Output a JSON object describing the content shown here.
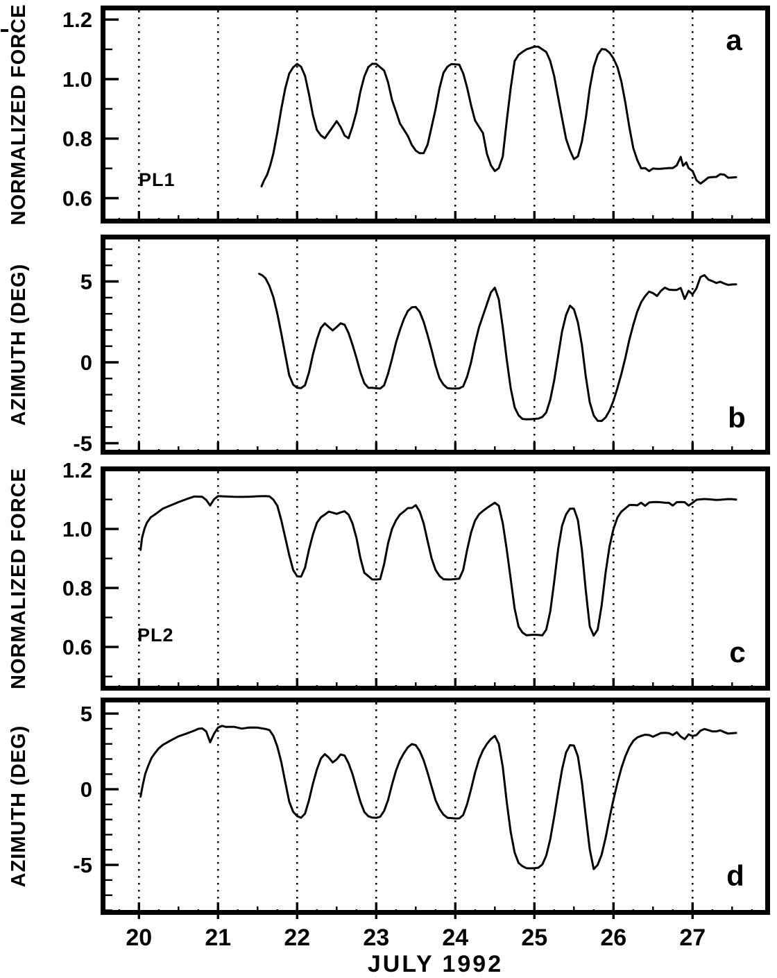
{
  "figure": {
    "xlabel": "JULY 1992",
    "x_ticks": [
      20,
      21,
      22,
      23,
      24,
      25,
      26,
      27
    ],
    "xlim": [
      19.515,
      27.98
    ],
    "background": "#ffffff",
    "ink": "#000000",
    "grid": "vertical-dotted-at-each-day"
  },
  "chart_data": [
    {
      "type": "line",
      "panel_letter": "a",
      "series": "PL1",
      "series_label": "PL1",
      "ylabel": "NORMALIZED FORCE",
      "ylim": [
        0.515,
        1.247
      ],
      "yticks_major": [
        {
          "v": 1.2,
          "label": "1.2"
        },
        {
          "v": 1.0,
          "label": "1.0"
        },
        {
          "v": 0.8,
          "label": "0.8"
        },
        {
          "v": 0.6,
          "label": "0.6"
        }
      ],
      "yticks_minor": [
        1.1,
        0.9,
        0.7
      ],
      "x": [
        21.55,
        21.58,
        21.62,
        21.66,
        21.7,
        21.75,
        21.8,
        21.85,
        21.9,
        21.95,
        22.0,
        22.05,
        22.1,
        22.15,
        22.2,
        22.25,
        22.3,
        22.35,
        22.4,
        22.45,
        22.5,
        22.55,
        22.6,
        22.65,
        22.7,
        22.75,
        22.8,
        22.85,
        22.9,
        22.95,
        23.0,
        23.05,
        23.1,
        23.15,
        23.2,
        23.25,
        23.3,
        23.35,
        23.4,
        23.45,
        23.5,
        23.55,
        23.6,
        23.65,
        23.7,
        23.75,
        23.8,
        23.85,
        23.9,
        23.95,
        24.0,
        24.05,
        24.1,
        24.15,
        24.2,
        24.25,
        24.3,
        24.35,
        24.4,
        24.45,
        24.5,
        24.55,
        24.6,
        24.65,
        24.7,
        24.75,
        24.8,
        24.85,
        24.9,
        25.0,
        25.05,
        25.1,
        25.15,
        25.2,
        25.25,
        25.3,
        25.35,
        25.4,
        25.45,
        25.5,
        25.55,
        25.6,
        25.65,
        25.7,
        25.75,
        25.8,
        25.85,
        25.9,
        25.95,
        26.0,
        26.05,
        26.1,
        26.15,
        26.2,
        26.25,
        26.3,
        26.35,
        26.4,
        26.45,
        26.5,
        26.55,
        26.6,
        26.65,
        26.7,
        26.75,
        26.8,
        26.85,
        26.88,
        26.92,
        26.95,
        27.0,
        27.05,
        27.1,
        27.15,
        27.2,
        27.25,
        27.3,
        27.35,
        27.4,
        27.45,
        27.5,
        27.55
      ],
      "y": [
        0.64,
        0.66,
        0.68,
        0.71,
        0.75,
        0.82,
        0.9,
        0.97,
        1.02,
        1.04,
        1.05,
        1.04,
        1.01,
        0.95,
        0.88,
        0.83,
        0.81,
        0.8,
        0.82,
        0.84,
        0.86,
        0.84,
        0.81,
        0.8,
        0.84,
        0.89,
        0.96,
        1.01,
        1.04,
        1.05,
        1.05,
        1.04,
        1.03,
        0.99,
        0.93,
        0.89,
        0.85,
        0.83,
        0.81,
        0.78,
        0.76,
        0.75,
        0.75,
        0.78,
        0.84,
        0.9,
        0.97,
        1.02,
        1.04,
        1.05,
        1.05,
        1.05,
        1.02,
        0.97,
        0.91,
        0.86,
        0.84,
        0.82,
        0.75,
        0.71,
        0.69,
        0.7,
        0.74,
        0.86,
        0.97,
        1.06,
        1.08,
        1.09,
        1.1,
        1.11,
        1.11,
        1.1,
        1.09,
        1.06,
        1.01,
        0.94,
        0.87,
        0.8,
        0.76,
        0.73,
        0.74,
        0.79,
        0.87,
        0.97,
        1.04,
        1.08,
        1.1,
        1.1,
        1.09,
        1.07,
        1.04,
        0.99,
        0.92,
        0.84,
        0.77,
        0.73,
        0.7,
        0.7,
        0.69,
        0.7,
        0.7,
        0.7,
        0.7,
        0.7,
        0.7,
        0.71,
        0.74,
        0.71,
        0.72,
        0.7,
        0.69,
        0.66,
        0.65,
        0.66,
        0.67,
        0.67,
        0.67,
        0.68,
        0.68,
        0.67,
        0.67,
        0.67
      ]
    },
    {
      "type": "line",
      "panel_letter": "b",
      "series": "PL1",
      "ylabel": "AZIMUTH (DEG)",
      "ylim": [
        -5.71,
        7.9
      ],
      "yticks_major": [
        {
          "v": 5,
          "label": "5"
        },
        {
          "v": 0,
          "label": "0"
        },
        {
          "v": -5,
          "label": "-5"
        }
      ],
      "yticks_minor": [
        7,
        6,
        4,
        3,
        2,
        1,
        -1,
        -2,
        -3,
        -4
      ],
      "x": [
        21.52,
        21.56,
        21.6,
        21.65,
        21.7,
        21.75,
        21.8,
        21.85,
        21.9,
        21.95,
        22.0,
        22.05,
        22.1,
        22.15,
        22.2,
        22.25,
        22.3,
        22.35,
        22.4,
        22.45,
        22.5,
        22.55,
        22.6,
        22.65,
        22.7,
        22.75,
        22.8,
        22.85,
        22.9,
        22.95,
        23.0,
        23.05,
        23.1,
        23.15,
        23.2,
        23.25,
        23.3,
        23.35,
        23.4,
        23.45,
        23.5,
        23.55,
        23.6,
        23.65,
        23.7,
        23.75,
        23.8,
        23.85,
        23.9,
        23.95,
        24.0,
        24.05,
        24.1,
        24.15,
        24.2,
        24.25,
        24.3,
        24.35,
        24.4,
        24.45,
        24.5,
        24.55,
        24.6,
        24.65,
        24.7,
        24.75,
        24.8,
        24.85,
        24.9,
        24.95,
        25.0,
        25.05,
        25.1,
        25.15,
        25.2,
        25.25,
        25.3,
        25.35,
        25.4,
        25.45,
        25.5,
        25.55,
        25.6,
        25.65,
        25.7,
        25.75,
        25.8,
        25.85,
        25.9,
        25.95,
        26.0,
        26.05,
        26.1,
        26.15,
        26.2,
        26.25,
        26.3,
        26.35,
        26.4,
        26.45,
        26.5,
        26.55,
        26.6,
        26.65,
        26.7,
        26.75,
        26.8,
        26.85,
        26.9,
        26.95,
        27.0,
        27.05,
        27.1,
        27.15,
        27.2,
        27.25,
        27.3,
        27.35,
        27.4,
        27.45,
        27.5,
        27.55
      ],
      "y": [
        5.5,
        5.4,
        5.2,
        4.7,
        4.0,
        3.0,
        1.8,
        0.5,
        -0.8,
        -1.4,
        -1.6,
        -1.6,
        -1.4,
        -0.6,
        0.5,
        1.4,
        2.1,
        2.4,
        2.2,
        2.0,
        2.2,
        2.4,
        2.3,
        1.8,
        1.1,
        0.3,
        -0.6,
        -1.3,
        -1.6,
        -1.6,
        -1.6,
        -1.6,
        -1.4,
        -0.7,
        0.2,
        1.2,
        2.0,
        2.7,
        3.2,
        3.4,
        3.4,
        3.1,
        2.5,
        1.7,
        0.8,
        -0.2,
        -1.0,
        -1.4,
        -1.6,
        -1.6,
        -1.6,
        -1.6,
        -1.5,
        -0.9,
        0.0,
        1.2,
        2.2,
        2.9,
        3.6,
        4.3,
        4.6,
        3.9,
        2.2,
        0.2,
        -1.6,
        -2.8,
        -3.3,
        -3.5,
        -3.5,
        -3.5,
        -3.5,
        -3.5,
        -3.4,
        -3.1,
        -2.3,
        -1.1,
        0.4,
        1.9,
        2.9,
        3.5,
        3.3,
        2.5,
        1.1,
        -0.9,
        -2.5,
        -3.3,
        -3.6,
        -3.6,
        -3.4,
        -3.0,
        -2.4,
        -1.6,
        -0.7,
        0.3,
        1.4,
        2.3,
        3.1,
        3.7,
        4.1,
        4.4,
        4.3,
        4.1,
        4.4,
        4.6,
        4.5,
        4.5,
        4.5,
        4.6,
        3.9,
        4.4,
        4.2,
        4.6,
        5.3,
        5.4,
        5.1,
        5.0,
        4.9,
        5.0,
        4.9,
        4.8,
        4.8,
        4.8
      ]
    },
    {
      "type": "line",
      "panel_letter": "c",
      "series": "PL2",
      "series_label": "PL2",
      "ylabel": "NORMALIZED FORCE",
      "ylim": [
        0.452,
        1.212
      ],
      "yticks_major": [
        {
          "v": 1.2,
          "label": "1.2"
        },
        {
          "v": 1.0,
          "label": "1.0"
        },
        {
          "v": 0.8,
          "label": "0.8"
        },
        {
          "v": 0.6,
          "label": "0.6"
        }
      ],
      "yticks_minor": [
        1.1,
        0.9,
        0.7,
        0.5
      ],
      "x": [
        20.02,
        20.04,
        20.07,
        20.1,
        20.15,
        20.2,
        20.3,
        20.4,
        20.5,
        20.6,
        20.7,
        20.8,
        20.85,
        20.9,
        20.95,
        21.0,
        21.1,
        21.2,
        21.3,
        21.4,
        21.5,
        21.6,
        21.65,
        21.7,
        21.75,
        21.8,
        21.85,
        21.9,
        21.95,
        22.0,
        22.05,
        22.1,
        22.15,
        22.2,
        22.25,
        22.3,
        22.35,
        22.4,
        22.45,
        22.5,
        22.55,
        22.6,
        22.65,
        22.7,
        22.75,
        22.8,
        22.85,
        22.9,
        22.95,
        23.0,
        23.05,
        23.1,
        23.15,
        23.2,
        23.25,
        23.3,
        23.35,
        23.4,
        23.45,
        23.5,
        23.55,
        23.6,
        23.65,
        23.7,
        23.75,
        23.8,
        23.85,
        23.9,
        23.95,
        24.0,
        24.05,
        24.1,
        24.15,
        24.2,
        24.25,
        24.3,
        24.35,
        24.4,
        24.45,
        24.5,
        24.55,
        24.6,
        24.65,
        24.7,
        24.75,
        24.8,
        24.85,
        24.9,
        24.95,
        25.0,
        25.05,
        25.1,
        25.15,
        25.2,
        25.25,
        25.3,
        25.35,
        25.4,
        25.45,
        25.5,
        25.55,
        25.6,
        25.65,
        25.7,
        25.75,
        25.8,
        25.85,
        25.9,
        25.95,
        26.0,
        26.05,
        26.1,
        26.15,
        26.2,
        26.25,
        26.3,
        26.35,
        26.4,
        26.45,
        26.5,
        26.55,
        26.6,
        26.65,
        26.7,
        26.75,
        26.8,
        26.85,
        26.9,
        26.95,
        27.0,
        27.05,
        27.1,
        27.15,
        27.2,
        27.25,
        27.3,
        27.35,
        27.4,
        27.45,
        27.5,
        27.55
      ],
      "y": [
        0.93,
        0.97,
        1.0,
        1.02,
        1.04,
        1.05,
        1.07,
        1.08,
        1.09,
        1.1,
        1.11,
        1.11,
        1.1,
        1.08,
        1.1,
        1.11,
        1.11,
        1.11,
        1.11,
        1.11,
        1.11,
        1.11,
        1.11,
        1.1,
        1.08,
        1.03,
        0.97,
        0.91,
        0.86,
        0.84,
        0.84,
        0.87,
        0.93,
        0.98,
        1.02,
        1.04,
        1.05,
        1.06,
        1.055,
        1.05,
        1.055,
        1.06,
        1.05,
        1.02,
        0.97,
        0.9,
        0.85,
        0.84,
        0.83,
        0.83,
        0.83,
        0.88,
        0.95,
        1.0,
        1.03,
        1.05,
        1.06,
        1.07,
        1.07,
        1.08,
        1.06,
        1.02,
        0.96,
        0.9,
        0.86,
        0.84,
        0.83,
        0.83,
        0.83,
        0.83,
        0.83,
        0.86,
        0.93,
        0.99,
        1.03,
        1.05,
        1.06,
        1.07,
        1.08,
        1.09,
        1.08,
        1.02,
        0.93,
        0.83,
        0.73,
        0.67,
        0.65,
        0.64,
        0.64,
        0.64,
        0.64,
        0.64,
        0.66,
        0.72,
        0.82,
        0.93,
        1.01,
        1.05,
        1.07,
        1.07,
        1.03,
        0.93,
        0.79,
        0.67,
        0.64,
        0.66,
        0.74,
        0.85,
        0.94,
        1.0,
        1.04,
        1.06,
        1.07,
        1.08,
        1.08,
        1.08,
        1.09,
        1.08,
        1.09,
        1.09,
        1.09,
        1.09,
        1.09,
        1.09,
        1.08,
        1.09,
        1.09,
        1.09,
        1.08,
        1.09,
        1.1,
        1.1,
        1.1,
        1.1,
        1.1,
        1.1,
        1.1,
        1.1,
        1.1,
        1.1,
        1.1
      ]
    },
    {
      "type": "line",
      "panel_letter": "d",
      "series": "PL2",
      "ylabel": "AZIMUTH (DEG)",
      "ylim": [
        -8.3,
        6.06
      ],
      "yticks_major": [
        {
          "v": 5,
          "label": "5"
        },
        {
          "v": 0,
          "label": "0"
        },
        {
          "v": -5,
          "label": "-5"
        }
      ],
      "yticks_minor": [
        4,
        3,
        2,
        1,
        -1,
        -2,
        -3,
        -4,
        -6,
        -7,
        -8
      ],
      "x": [
        20.02,
        20.05,
        20.08,
        20.12,
        20.16,
        20.2,
        20.25,
        20.3,
        20.4,
        20.5,
        20.6,
        20.7,
        20.75,
        20.8,
        20.85,
        20.9,
        20.95,
        21.0,
        21.05,
        21.1,
        21.2,
        21.3,
        21.4,
        21.5,
        21.6,
        21.65,
        21.7,
        21.75,
        21.8,
        21.85,
        21.9,
        21.95,
        22.0,
        22.05,
        22.1,
        22.15,
        22.2,
        22.25,
        22.3,
        22.35,
        22.4,
        22.45,
        22.5,
        22.55,
        22.6,
        22.65,
        22.7,
        22.75,
        22.8,
        22.85,
        22.9,
        22.95,
        23.0,
        23.05,
        23.1,
        23.15,
        23.2,
        23.25,
        23.3,
        23.35,
        23.4,
        23.45,
        23.5,
        23.55,
        23.6,
        23.65,
        23.7,
        23.75,
        23.8,
        23.85,
        23.9,
        23.95,
        24.0,
        24.05,
        24.1,
        24.15,
        24.2,
        24.25,
        24.3,
        24.35,
        24.4,
        24.45,
        24.5,
        24.55,
        24.6,
        24.65,
        24.7,
        24.75,
        24.8,
        24.85,
        24.9,
        24.95,
        25.0,
        25.05,
        25.1,
        25.15,
        25.2,
        25.25,
        25.3,
        25.35,
        25.4,
        25.45,
        25.5,
        25.55,
        25.6,
        25.65,
        25.7,
        25.75,
        25.8,
        25.85,
        25.9,
        25.95,
        26.0,
        26.05,
        26.1,
        26.15,
        26.2,
        26.25,
        26.3,
        26.35,
        26.4,
        26.45,
        26.5,
        26.55,
        26.6,
        26.65,
        26.7,
        26.75,
        26.8,
        26.85,
        26.9,
        26.95,
        27.0,
        27.05,
        27.1,
        27.15,
        27.2,
        27.25,
        27.3,
        27.35,
        27.4,
        27.45,
        27.5,
        27.55
      ],
      "y": [
        -0.5,
        0.3,
        1.0,
        1.6,
        2.1,
        2.4,
        2.7,
        2.9,
        3.2,
        3.5,
        3.7,
        3.9,
        4.0,
        4.0,
        3.8,
        3.1,
        3.7,
        4.1,
        4.2,
        4.1,
        4.1,
        4.0,
        4.1,
        4.1,
        4.0,
        3.9,
        3.5,
        2.8,
        1.8,
        0.5,
        -0.8,
        -1.5,
        -1.8,
        -1.9,
        -1.6,
        -0.7,
        0.4,
        1.3,
        2.0,
        2.3,
        2.1,
        1.8,
        2.0,
        2.3,
        2.2,
        1.7,
        1.0,
        0.1,
        -0.8,
        -1.5,
        -1.8,
        -1.9,
        -1.9,
        -1.8,
        -1.4,
        -0.7,
        0.3,
        1.2,
        1.9,
        2.4,
        2.8,
        3.0,
        2.9,
        2.5,
        1.9,
        1.1,
        0.2,
        -0.7,
        -1.3,
        -1.7,
        -1.9,
        -1.9,
        -1.9,
        -1.9,
        -1.7,
        -1.0,
        0.0,
        1.1,
        2.0,
        2.6,
        3.0,
        3.3,
        3.5,
        3.0,
        1.5,
        -0.8,
        -2.8,
        -4.2,
        -4.9,
        -5.1,
        -5.2,
        -5.2,
        -5.2,
        -5.2,
        -5.0,
        -4.4,
        -3.3,
        -1.8,
        -0.2,
        1.3,
        2.4,
        2.9,
        2.9,
        2.2,
        0.5,
        -1.8,
        -4.0,
        -5.3,
        -5.0,
        -4.3,
        -3.2,
        -1.9,
        -0.7,
        0.4,
        1.4,
        2.2,
        2.8,
        3.2,
        3.4,
        3.5,
        3.6,
        3.6,
        3.5,
        3.6,
        3.7,
        3.7,
        3.7,
        3.6,
        3.8,
        3.5,
        3.3,
        3.6,
        3.5,
        3.6,
        3.9,
        4.0,
        3.9,
        3.8,
        3.8,
        3.9,
        3.8,
        3.7,
        3.7,
        3.7
      ]
    }
  ]
}
